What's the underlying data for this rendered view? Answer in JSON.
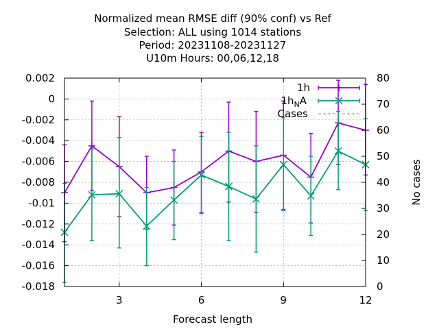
{
  "chart_data": {
    "type": "line",
    "title_lines": [
      "Normalized mean RMSE diff (90% conf) vs Ref",
      "Selection: ALL using  1014 stations",
      "Period: 20231108-20231127",
      "U10m   Hours:  00,06,12,18"
    ],
    "xlabel": "Forecast length",
    "ylabel_right": "No cases",
    "xlim": [
      1,
      12
    ],
    "ylim": [
      -0.018,
      0.002
    ],
    "ylim_right": [
      0,
      80
    ],
    "x_ticks": [
      3,
      6,
      9,
      12
    ],
    "y_ticks": [
      0.002,
      0,
      -0.002,
      -0.004,
      -0.006,
      -0.008,
      -0.01,
      -0.012,
      -0.014,
      -0.016,
      -0.018
    ],
    "y_tick_labels": [
      "0.002",
      "0",
      "-0.002",
      "-0.004",
      "-0.006",
      "-0.008",
      "-0.01",
      "-0.012",
      "-0.014",
      "-0.016",
      "-0.018"
    ],
    "y_right_ticks": [
      0,
      10,
      20,
      30,
      40,
      50,
      60,
      70,
      80
    ],
    "grid": true,
    "legend_position": "top-right",
    "series": [
      {
        "name": "1h",
        "color": "#9400d3",
        "marker": "plus",
        "x": [
          1,
          2,
          3,
          4,
          5,
          6,
          7,
          8,
          9,
          10,
          11,
          12
        ],
        "y": [
          -0.009,
          -0.0045,
          -0.0065,
          -0.009,
          -0.0085,
          -0.007,
          -0.005,
          -0.006,
          -0.0054,
          -0.0075,
          -0.0023,
          -0.003
        ],
        "err_low": [
          -0.0137,
          -0.0088,
          -0.0113,
          -0.0125,
          -0.0121,
          -0.0109,
          -0.0099,
          -0.0109,
          -0.0106,
          -0.0119,
          -0.0063,
          -0.0073
        ],
        "err_high": [
          -0.0044,
          -0.0002,
          -0.0017,
          -0.0055,
          -0.0049,
          -0.0032,
          -0.0003,
          -0.0012,
          -0.0002,
          -0.0033,
          0.0018,
          0.0014
        ]
      },
      {
        "name_main": "1h",
        "name_sub": "N",
        "name_tail": "A",
        "color": "#009e73",
        "marker": "cross",
        "x": [
          1,
          2,
          3,
          4,
          5,
          6,
          7,
          8,
          9,
          10,
          11,
          12
        ],
        "y": [
          -0.0128,
          -0.0092,
          -0.0091,
          -0.0122,
          -0.0097,
          -0.0073,
          -0.0084,
          -0.0096,
          -0.0063,
          -0.0093,
          -0.005,
          -0.0063
        ],
        "err_low": [
          -0.0176,
          -0.0136,
          -0.0143,
          -0.016,
          -0.0135,
          -0.011,
          -0.0136,
          -0.0147,
          -0.0107,
          -0.0131,
          -0.0087,
          -0.0107
        ],
        "err_high": [
          -0.0081,
          -0.0048,
          -0.0037,
          -0.0085,
          -0.006,
          -0.0036,
          -0.0032,
          -0.0045,
          -0.0018,
          -0.0055,
          -0.0012,
          -0.0019
        ]
      }
    ],
    "cases_series": {
      "name": "Cases",
      "color": "#a0a0a0",
      "style": "dashed"
    }
  }
}
